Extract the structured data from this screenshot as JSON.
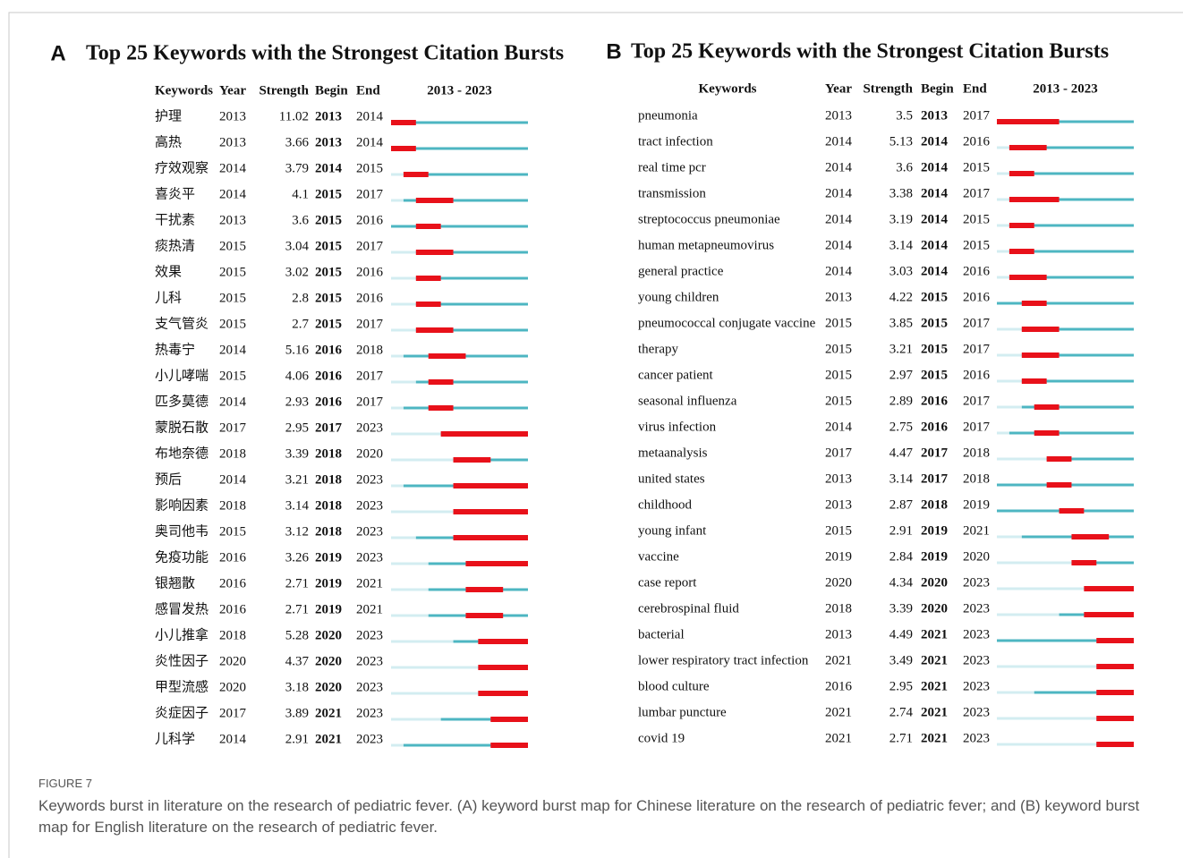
{
  "panels": [
    {
      "label": "A",
      "title": "Top 25 Keywords with the Strongest Citation Bursts",
      "headers": [
        "Keywords",
        "Year",
        "Strength",
        "Begin",
        "End"
      ],
      "timeline": {
        "label": "2013 - 2023",
        "start": 2013,
        "end": 2023
      },
      "rows": [
        [
          "护理",
          2013,
          11.02,
          2013,
          2014
        ],
        [
          "高热",
          2013,
          3.66,
          2013,
          2014
        ],
        [
          "疗效观察",
          2014,
          3.79,
          2014,
          2015
        ],
        [
          "喜炎平",
          2014,
          4.1,
          2015,
          2017
        ],
        [
          "干扰素",
          2013,
          3.6,
          2015,
          2016
        ],
        [
          "痰热清",
          2015,
          3.04,
          2015,
          2017
        ],
        [
          "效果",
          2015,
          3.02,
          2015,
          2016
        ],
        [
          "儿科",
          2015,
          2.8,
          2015,
          2016
        ],
        [
          "支气管炎",
          2015,
          2.7,
          2015,
          2017
        ],
        [
          "热毒宁",
          2014,
          5.16,
          2016,
          2018
        ],
        [
          "小儿哮喘",
          2015,
          4.06,
          2016,
          2017
        ],
        [
          "匹多莫德",
          2014,
          2.93,
          2016,
          2017
        ],
        [
          "蒙脱石散",
          2017,
          2.95,
          2017,
          2023
        ],
        [
          "布地奈德",
          2018,
          3.39,
          2018,
          2020
        ],
        [
          "预后",
          2014,
          3.21,
          2018,
          2023
        ],
        [
          "影响因素",
          2018,
          3.14,
          2018,
          2023
        ],
        [
          "奥司他韦",
          2015,
          3.12,
          2018,
          2023
        ],
        [
          "免疫功能",
          2016,
          3.26,
          2019,
          2023
        ],
        [
          "银翘散",
          2016,
          2.71,
          2019,
          2021
        ],
        [
          "感冒发热",
          2016,
          2.71,
          2019,
          2021
        ],
        [
          "小儿推拿",
          2018,
          5.28,
          2020,
          2023
        ],
        [
          "炎性因子",
          2020,
          4.37,
          2020,
          2023
        ],
        [
          "甲型流感",
          2020,
          3.18,
          2020,
          2023
        ],
        [
          "炎症因子",
          2017,
          3.89,
          2021,
          2023
        ],
        [
          "儿科学",
          2014,
          2.91,
          2021,
          2023
        ]
      ]
    },
    {
      "label": "B",
      "title": "Top 25 Keywords with the Strongest Citation Bursts",
      "headers": [
        "Keywords",
        "Year",
        "Strength",
        "Begin",
        "End"
      ],
      "timeline": {
        "label": "2013 - 2023",
        "start": 2013,
        "end": 2023
      },
      "rows": [
        [
          "pneumonia",
          2013,
          3.5,
          2013,
          2017
        ],
        [
          "tract infection",
          2014,
          5.13,
          2014,
          2016
        ],
        [
          "real time pcr",
          2014,
          3.6,
          2014,
          2015
        ],
        [
          "transmission",
          2014,
          3.38,
          2014,
          2017
        ],
        [
          "streptococcus pneumoniae",
          2014,
          3.19,
          2014,
          2015
        ],
        [
          "human metapneumovirus",
          2014,
          3.14,
          2014,
          2015
        ],
        [
          "general practice",
          2014,
          3.03,
          2014,
          2016
        ],
        [
          "young children",
          2013,
          4.22,
          2015,
          2016
        ],
        [
          "pneumococcal conjugate vaccine",
          2015,
          3.85,
          2015,
          2017
        ],
        [
          "therapy",
          2015,
          3.21,
          2015,
          2017
        ],
        [
          "cancer patient",
          2015,
          2.97,
          2015,
          2016
        ],
        [
          "seasonal influenza",
          2015,
          2.89,
          2016,
          2017
        ],
        [
          "virus infection",
          2014,
          2.75,
          2016,
          2017
        ],
        [
          "metaanalysis",
          2017,
          4.47,
          2017,
          2018
        ],
        [
          "united states",
          2013,
          3.14,
          2017,
          2018
        ],
        [
          "childhood",
          2013,
          2.87,
          2018,
          2019
        ],
        [
          "young infant",
          2015,
          2.91,
          2019,
          2021
        ],
        [
          "vaccine",
          2019,
          2.84,
          2019,
          2020
        ],
        [
          "case report",
          2020,
          4.34,
          2020,
          2023
        ],
        [
          "cerebrospinal fluid",
          2018,
          3.39,
          2020,
          2023
        ],
        [
          "bacterial",
          2013,
          4.49,
          2021,
          2023
        ],
        [
          "lower respiratory tract infection",
          2021,
          3.49,
          2021,
          2023
        ],
        [
          "blood culture",
          2016,
          2.95,
          2021,
          2023
        ],
        [
          "lumbar puncture",
          2021,
          2.74,
          2021,
          2023
        ],
        [
          "covid 19",
          2021,
          2.71,
          2021,
          2023
        ]
      ]
    }
  ],
  "caption": {
    "label": "FIGURE 7",
    "text": "Keywords burst in literature on the research of pediatric fever. (A) keyword burst map for Chinese literature on the research of pediatric fever; and (B) keyword burst map for English literature on the research of pediatric fever."
  }
}
